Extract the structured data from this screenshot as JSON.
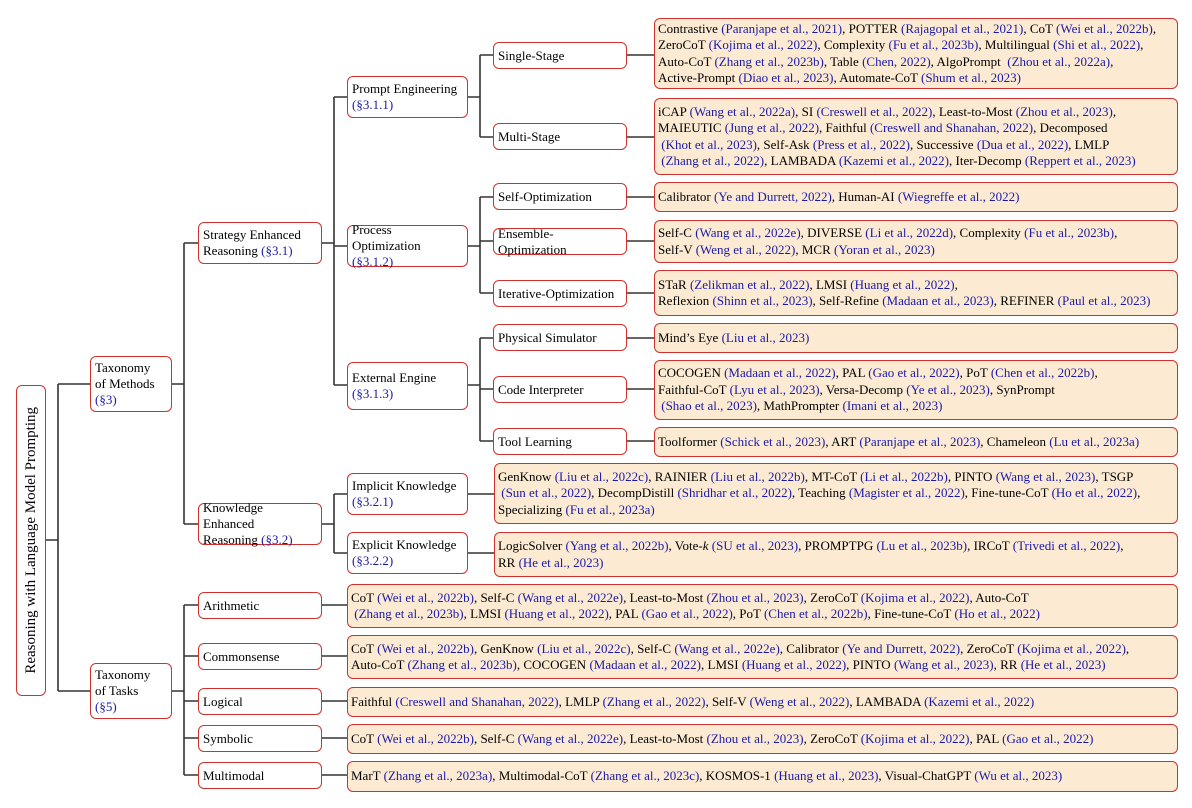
{
  "root": {
    "label": "Reasoning with Language Model Prompting"
  },
  "colors": {
    "border": "#d0312d",
    "leaf_fill": "#fcebd2",
    "citation": "#1a1aa8"
  },
  "level1": {
    "methods": {
      "line1": "Taxonomy",
      "line2": "of Methods",
      "ref": "(§3)"
    },
    "tasks": {
      "line1": "Taxonomy",
      "line2": "of Tasks",
      "ref": "(§5)"
    }
  },
  "level2": {
    "strategy": {
      "line1": "Strategy Enhanced",
      "line2": "Reasoning ",
      "ref": "(§3.1)"
    },
    "knowledge": {
      "line1": "Knowledge Enhanced",
      "line2": "Reasoning ",
      "ref": "(§3.2)"
    }
  },
  "level3": {
    "prompt_engineering": {
      "line1": "Prompt Engineering",
      "ref": "(§3.1.1)"
    },
    "process_optimization": {
      "line1": "Process Optimization",
      "ref": "(§3.1.2)"
    },
    "external_engine": {
      "line1": "External Engine",
      "ref": "(§3.1.3)"
    },
    "implicit_knowledge": {
      "line1": "Implicit Knowledge",
      "ref": "(§3.2.1)"
    },
    "explicit_knowledge": {
      "line1": "Explicit Knowledge",
      "ref": "(§3.2.2)"
    }
  },
  "level4": {
    "single_stage": "Single-Stage",
    "multi_stage": "Multi-Stage",
    "self_optimization": "Self-Optimization",
    "ensemble_optimization": "Ensemble-Optimization",
    "iterative_optimization": "Iterative-Optimization",
    "physical_simulator": "Physical Simulator",
    "code_interpreter": "Code Interpreter",
    "tool_learning": "Tool Learning"
  },
  "tasks": {
    "arithmetic": "Arithmetic",
    "commonsense": "Commonsense",
    "logical": "Logical",
    "symbolic": "Symbolic",
    "multimodal": "Multimodal"
  },
  "leaves": {
    "single_stage": {
      "lines": [
        [
          [
            "Contrastive ",
            0
          ],
          [
            "(Paranjape et al., 2021)",
            1
          ],
          [
            ", POTTER ",
            0
          ],
          [
            "(Rajagopal et al., 2021)",
            1
          ],
          [
            ", CoT ",
            0
          ],
          [
            "(Wei et al., 2022b)",
            1
          ],
          [
            ",",
            0
          ]
        ],
        [
          [
            "ZeroCoT ",
            0
          ],
          [
            "(Kojima et al., 2022)",
            1
          ],
          [
            ", Complexity ",
            0
          ],
          [
            "(Fu et al., 2023b)",
            1
          ],
          [
            ", Multilingual ",
            0
          ],
          [
            "(Shi et al., 2022)",
            1
          ],
          [
            ",",
            0
          ]
        ],
        [
          [
            "Auto-CoT ",
            0
          ],
          [
            "(Zhang et al., 2023b)",
            1
          ],
          [
            ", Table ",
            0
          ],
          [
            "(Chen, 2022)",
            1
          ],
          [
            ", AlgoPrompt  ",
            0
          ],
          [
            "(Zhou et al., 2022a)",
            1
          ],
          [
            ",",
            0
          ]
        ],
        [
          [
            "Active-Prompt ",
            0
          ],
          [
            "(Diao et al., 2023)",
            1
          ],
          [
            ", Automate-CoT ",
            0
          ],
          [
            "(Shum et al., 2023)",
            1
          ]
        ]
      ]
    },
    "multi_stage": {
      "lines": [
        [
          [
            "iCAP ",
            0
          ],
          [
            "(Wang et al., 2022a)",
            1
          ],
          [
            ", SI ",
            0
          ],
          [
            "(Creswell et al., 2022)",
            1
          ],
          [
            ", Least-to-Most ",
            0
          ],
          [
            "(Zhou et al., 2023)",
            1
          ],
          [
            ",",
            0
          ]
        ],
        [
          [
            "MAIEUTIC ",
            0
          ],
          [
            "(Jung et al., 2022)",
            1
          ],
          [
            ", Faithful ",
            0
          ],
          [
            "(Creswell and Shanahan, 2022)",
            1
          ],
          [
            ", Decomposed",
            0
          ]
        ],
        [
          [
            " ",
            0
          ],
          [
            "(Khot et al., 2023)",
            1
          ],
          [
            ", Self-Ask ",
            0
          ],
          [
            "(Press et al., 2022)",
            1
          ],
          [
            ", Successive ",
            0
          ],
          [
            "(Dua et al., 2022)",
            1
          ],
          [
            ", LMLP",
            0
          ]
        ],
        [
          [
            " ",
            0
          ],
          [
            "(Zhang et al., 2022)",
            1
          ],
          [
            ", LAMBADA ",
            0
          ],
          [
            "(Kazemi et al., 2022)",
            1
          ],
          [
            ", Iter-Decomp ",
            0
          ],
          [
            "(Reppert et al., 2023)",
            1
          ]
        ]
      ]
    },
    "self_optimization": {
      "lines": [
        [
          [
            "Calibrator ",
            0
          ],
          [
            "(Ye and Durrett, 2022)",
            1
          ],
          [
            ", Human-AI ",
            0
          ],
          [
            "(Wiegreffe et al., 2022)",
            1
          ]
        ]
      ]
    },
    "ensemble_optimization": {
      "lines": [
        [
          [
            "Self-C ",
            0
          ],
          [
            "(Wang et al., 2022e)",
            1
          ],
          [
            ", DIVERSE ",
            0
          ],
          [
            "(Li et al., 2022d)",
            1
          ],
          [
            ", Complexity ",
            0
          ],
          [
            "(Fu et al., 2023b)",
            1
          ],
          [
            ",",
            0
          ]
        ],
        [
          [
            "Self-V ",
            0
          ],
          [
            "(Weng et al., 2022)",
            1
          ],
          [
            ", MCR ",
            0
          ],
          [
            "(Yoran et al., 2023)",
            1
          ]
        ]
      ]
    },
    "iterative_optimization": {
      "lines": [
        [
          [
            "STaR ",
            0
          ],
          [
            "(Zelikman et al., 2022)",
            1
          ],
          [
            ", LMSI ",
            0
          ],
          [
            "(Huang et al., 2022)",
            1
          ],
          [
            ",",
            0
          ]
        ],
        [
          [
            "Reflexion ",
            0
          ],
          [
            "(Shinn et al., 2023)",
            1
          ],
          [
            ", Self-Refine ",
            0
          ],
          [
            "(Madaan et al., 2023)",
            1
          ],
          [
            ", REFINER ",
            0
          ],
          [
            "(Paul et al., 2023)",
            1
          ]
        ]
      ]
    },
    "physical_simulator": {
      "lines": [
        [
          [
            "Mind’s Eye ",
            0
          ],
          [
            "(Liu et al., 2023)",
            1
          ]
        ]
      ]
    },
    "code_interpreter": {
      "lines": [
        [
          [
            "COCOGEN ",
            0
          ],
          [
            "(Madaan et al., 2022)",
            1
          ],
          [
            ", PAL ",
            0
          ],
          [
            "(Gao et al., 2022)",
            1
          ],
          [
            ", PoT ",
            0
          ],
          [
            "(Chen et al., 2022b)",
            1
          ],
          [
            ",",
            0
          ]
        ],
        [
          [
            "Faithful-CoT ",
            0
          ],
          [
            "(Lyu et al., 2023)",
            1
          ],
          [
            ", Versa-Decomp ",
            0
          ],
          [
            "(Ye et al., 2023)",
            1
          ],
          [
            ", SynPrompt",
            0
          ]
        ],
        [
          [
            " ",
            0
          ],
          [
            "(Shao et al., 2023)",
            1
          ],
          [
            ", MathPrompter ",
            0
          ],
          [
            "(Imani et al., 2023)",
            1
          ]
        ]
      ]
    },
    "tool_learning": {
      "lines": [
        [
          [
            "Toolformer ",
            0
          ],
          [
            "(Schick et al., 2023)",
            1
          ],
          [
            ", ART ",
            0
          ],
          [
            "(Paranjape et al., 2023)",
            1
          ],
          [
            ", Chameleon ",
            0
          ],
          [
            "(Lu et al., 2023a)",
            1
          ]
        ]
      ]
    },
    "implicit_knowledge": {
      "lines": [
        [
          [
            "GenKnow ",
            0
          ],
          [
            "(Liu et al., 2022c)",
            1
          ],
          [
            ", RAINIER ",
            0
          ],
          [
            "(Liu et al., 2022b)",
            1
          ],
          [
            ", MT-CoT ",
            0
          ],
          [
            "(Li et al., 2022b)",
            1
          ],
          [
            ", PINTO ",
            0
          ],
          [
            "(Wang et al., 2023)",
            1
          ],
          [
            ", TSGP",
            0
          ]
        ],
        [
          [
            " ",
            0
          ],
          [
            "(Sun et al., 2022)",
            1
          ],
          [
            ", DecompDistill ",
            0
          ],
          [
            "(Shridhar et al., 2022)",
            1
          ],
          [
            ", Teaching ",
            0
          ],
          [
            "(Magister et al., 2022)",
            1
          ],
          [
            ", Fine-tune-CoT ",
            0
          ],
          [
            "(Ho et al., 2022)",
            1
          ],
          [
            ",",
            0
          ]
        ],
        [
          [
            "Specializing ",
            0
          ],
          [
            "(Fu et al., 2023a)",
            1
          ]
        ]
      ]
    },
    "explicit_knowledge": {
      "lines": [
        [
          [
            "LogicSolver ",
            0
          ],
          [
            "(Yang et al., 2022b)",
            1
          ],
          [
            ", Vote-",
            0
          ],
          [
            "k",
            2
          ],
          [
            " ",
            0
          ],
          [
            "(SU et al., 2023)",
            1
          ],
          [
            ", PROMPTPG ",
            0
          ],
          [
            "(Lu et al., 2023b)",
            1
          ],
          [
            ", IRCoT ",
            0
          ],
          [
            "(Trivedi et al., 2022)",
            1
          ],
          [
            ",",
            0
          ]
        ],
        [
          [
            "RR ",
            0
          ],
          [
            "(He et al., 2023)",
            1
          ]
        ]
      ]
    },
    "arithmetic": {
      "lines": [
        [
          [
            "CoT ",
            0
          ],
          [
            "(Wei et al., 2022b)",
            1
          ],
          [
            ", Self-C ",
            0
          ],
          [
            "(Wang et al., 2022e)",
            1
          ],
          [
            ", Least-to-Most ",
            0
          ],
          [
            "(Zhou et al., 2023)",
            1
          ],
          [
            ", ZeroCoT ",
            0
          ],
          [
            "(Kojima et al., 2022)",
            1
          ],
          [
            ", Auto-CoT",
            0
          ]
        ],
        [
          [
            " ",
            0
          ],
          [
            "(Zhang et al., 2023b)",
            1
          ],
          [
            ", LMSI ",
            0
          ],
          [
            "(Huang et al., 2022)",
            1
          ],
          [
            ", PAL ",
            0
          ],
          [
            "(Gao et al., 2022)",
            1
          ],
          [
            ", PoT ",
            0
          ],
          [
            "(Chen et al., 2022b)",
            1
          ],
          [
            ", Fine-tune-CoT ",
            0
          ],
          [
            "(Ho et al., 2022)",
            1
          ]
        ]
      ]
    },
    "commonsense": {
      "lines": [
        [
          [
            "CoT ",
            0
          ],
          [
            "(Wei et al., 2022b)",
            1
          ],
          [
            ", GenKnow ",
            0
          ],
          [
            "(Liu et al., 2022c)",
            1
          ],
          [
            ", Self-C ",
            0
          ],
          [
            "(Wang et al., 2022e)",
            1
          ],
          [
            ", Calibrator ",
            0
          ],
          [
            "(Ye and Durrett, 2022)",
            1
          ],
          [
            ", ZeroCoT ",
            0
          ],
          [
            "(Kojima et al., 2022)",
            1
          ],
          [
            ",",
            0
          ]
        ],
        [
          [
            "Auto-CoT ",
            0
          ],
          [
            "(Zhang et al., 2023b)",
            1
          ],
          [
            ", COCOGEN ",
            0
          ],
          [
            "(Madaan et al., 2022)",
            1
          ],
          [
            ", LMSI ",
            0
          ],
          [
            "(Huang et al., 2022)",
            1
          ],
          [
            ", PINTO ",
            0
          ],
          [
            "(Wang et al., 2023)",
            1
          ],
          [
            ", RR ",
            0
          ],
          [
            "(He et al., 2023)",
            1
          ]
        ]
      ]
    },
    "logical": {
      "lines": [
        [
          [
            "Faithful ",
            0
          ],
          [
            "(Creswell and Shanahan, 2022)",
            1
          ],
          [
            ", LMLP ",
            0
          ],
          [
            "(Zhang et al., 2022)",
            1
          ],
          [
            ", Self-V ",
            0
          ],
          [
            "(Weng et al., 2022)",
            1
          ],
          [
            ", LAMBADA ",
            0
          ],
          [
            "(Kazemi et al., 2022)",
            1
          ]
        ]
      ]
    },
    "symbolic": {
      "lines": [
        [
          [
            "CoT ",
            0
          ],
          [
            "(Wei et al., 2022b)",
            1
          ],
          [
            ", Self-C ",
            0
          ],
          [
            "(Wang et al., 2022e)",
            1
          ],
          [
            ", Least-to-Most ",
            0
          ],
          [
            "(Zhou et al., 2023)",
            1
          ],
          [
            ", ZeroCoT ",
            0
          ],
          [
            "(Kojima et al., 2022)",
            1
          ],
          [
            ", PAL ",
            0
          ],
          [
            "(Gao et al., 2022)",
            1
          ]
        ]
      ]
    },
    "multimodal": {
      "lines": [
        [
          [
            "MarT ",
            0
          ],
          [
            "(Zhang et al., 2023a)",
            1
          ],
          [
            ", Multimodal-CoT ",
            0
          ],
          [
            "(Zhang et al., 2023c)",
            1
          ],
          [
            ", KOSMOS-1 ",
            0
          ],
          [
            "(Huang et al., 2023)",
            1
          ],
          [
            ", Visual-ChatGPT ",
            0
          ],
          [
            "(Wu et al., 2023)",
            1
          ]
        ]
      ]
    }
  }
}
